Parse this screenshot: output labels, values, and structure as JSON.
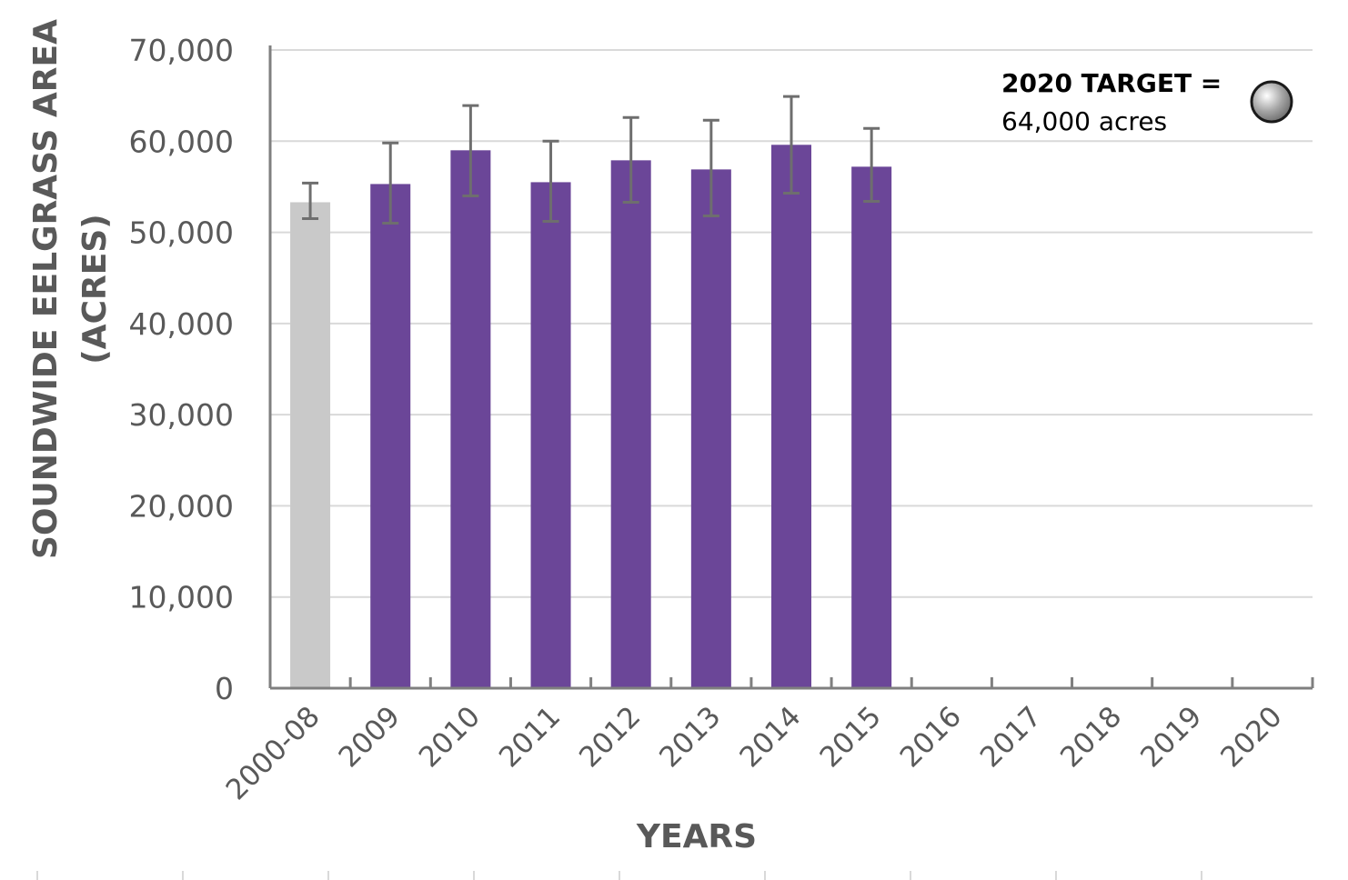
{
  "chart_data": {
    "type": "bar",
    "categories": [
      "2000-08",
      "2009",
      "2010",
      "2011",
      "2012",
      "2013",
      "2014",
      "2015",
      "2016",
      "2017",
      "2018",
      "2019",
      "2020"
    ],
    "series": [
      {
        "values": [
          53300,
          55300,
          59000,
          55500,
          57900,
          56900,
          59600,
          57200,
          null,
          null,
          null,
          null,
          null
        ],
        "error_low": [
          51500,
          51000,
          54000,
          51200,
          53300,
          51800,
          54300,
          53400,
          null,
          null,
          null,
          null,
          null
        ],
        "error_high": [
          55400,
          59800,
          63900,
          60000,
          62600,
          62300,
          64900,
          61400,
          null,
          null,
          null,
          null,
          null
        ],
        "colors": [
          "#c9c9c9",
          "#6b4698",
          "#6b4698",
          "#6b4698",
          "#6b4698",
          "#6b4698",
          "#6b4698",
          "#6b4698",
          "#6b4698",
          "#6b4698",
          "#6b4698",
          "#6b4698",
          "#6b4698"
        ]
      }
    ],
    "target": {
      "category": "2020",
      "value": 64000,
      "title": "2020 TARGET =",
      "value_label": "64,000 acres"
    },
    "xlabel": "YEARS",
    "ylabel_lines": [
      "SOUNDWIDE EELGRASS AREA",
      "(ACRES)"
    ],
    "ylim": [
      0,
      70000
    ],
    "yticks": [
      0,
      10000,
      20000,
      30000,
      40000,
      50000,
      60000,
      70000
    ],
    "ytick_labels": [
      "0",
      "10,000",
      "20,000",
      "30,000",
      "40,000",
      "50,000",
      "60,000",
      "70,000"
    ],
    "grid": true,
    "colors": {
      "gridline": "#d9d9d9",
      "axis": "#7f7f7f",
      "error_bar": "#6e6e6e"
    }
  }
}
